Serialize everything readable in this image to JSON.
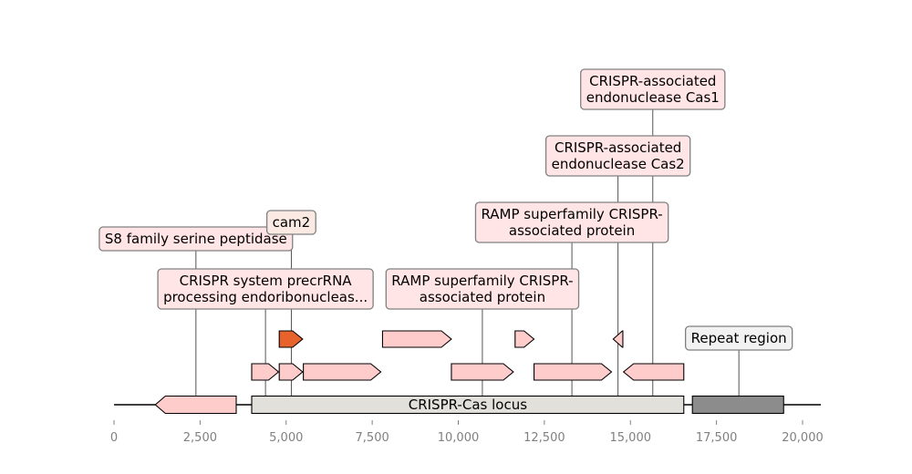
{
  "axis": {
    "ticks": [
      "0",
      "2,500",
      "5,000",
      "7,500",
      "10,000",
      "12,500",
      "15,000",
      "17,500",
      "20,000"
    ]
  },
  "regions": [
    {
      "id": "locus",
      "label": "CRISPR-Cas locus",
      "start": 4000,
      "end": 16550,
      "color": "#e2e0da"
    },
    {
      "id": "repeat",
      "label": "",
      "start": 16800,
      "end": 19450,
      "color": "#8c8c8c"
    }
  ],
  "genes": [
    {
      "id": "s8",
      "start": 1200,
      "end": 3550,
      "strand": -1,
      "row": 0,
      "color": "#ffcccc"
    },
    {
      "id": "precrrna",
      "start": 4000,
      "end": 4780,
      "strand": 1,
      "row": 1,
      "color": "#ffcccc"
    },
    {
      "id": "g-small",
      "start": 4800,
      "end": 5480,
      "strand": 1,
      "row": 1,
      "color": "#ffcccc"
    },
    {
      "id": "g-long",
      "start": 5500,
      "end": 7750,
      "strand": 1,
      "row": 1,
      "color": "#ffcccc"
    },
    {
      "id": "cam2",
      "start": 4800,
      "end": 5480,
      "strand": 1,
      "row": 2,
      "color": "#e8632b"
    },
    {
      "id": "g-top",
      "start": 7800,
      "end": 9800,
      "strand": 1,
      "row": 2,
      "color": "#ffcccc"
    },
    {
      "id": "ramp1",
      "start": 9800,
      "end": 11600,
      "strand": 1,
      "row": 1,
      "color": "#ffcccc"
    },
    {
      "id": "g-tiny",
      "start": 11650,
      "end": 12200,
      "strand": 1,
      "row": 2,
      "color": "#ffcccc"
    },
    {
      "id": "ramp2",
      "start": 12200,
      "end": 14450,
      "strand": 1,
      "row": 1,
      "color": "#ffcccc"
    },
    {
      "id": "cas2",
      "start": 14500,
      "end": 14780,
      "strand": -1,
      "row": 2,
      "color": "#ffcccc"
    },
    {
      "id": "cas1",
      "start": 14800,
      "end": 16550,
      "strand": -1,
      "row": 1,
      "color": "#ffcccc"
    }
  ],
  "annotations": [
    {
      "id": "s8-label",
      "lines": [
        "S8 family serine peptidase"
      ],
      "at": 2380,
      "level": 4,
      "fill": "#ffe5e5"
    },
    {
      "id": "precrrna-label",
      "lines": [
        "CRISPR system precrRNA",
        "processing endoribonucleas..."
      ],
      "at": 4400,
      "level": 3,
      "fill": "#ffe5e5"
    },
    {
      "id": "cam2-label",
      "lines": [
        "cam2"
      ],
      "at": 5150,
      "level": 5,
      "fill": "#fbeae4"
    },
    {
      "id": "ramp1-label",
      "lines": [
        "RAMP superfamily CRISPR-",
        "associated protein"
      ],
      "at": 10700,
      "level": 3,
      "fill": "#ffe5e5"
    },
    {
      "id": "ramp2-label",
      "lines": [
        "RAMP superfamily CRISPR-",
        "associated protein"
      ],
      "at": 13300,
      "level": 5,
      "fill": "#ffe5e5"
    },
    {
      "id": "cas2-label",
      "lines": [
        "CRISPR-associated",
        "endonuclease Cas2"
      ],
      "at": 14640,
      "level": 6,
      "fill": "#ffe5e5"
    },
    {
      "id": "cas1-label",
      "lines": [
        "CRISPR-associated",
        "endonuclease Cas1"
      ],
      "at": 15650,
      "level": 7,
      "fill": "#ffe5e5"
    },
    {
      "id": "repeat-label",
      "lines": [
        "Repeat region"
      ],
      "at": 18150,
      "level": 2,
      "fill": "#f2f2f2"
    }
  ],
  "colors": {
    "label_border": "#808080",
    "leader_line": "#404040",
    "axis_text": "#808080"
  }
}
